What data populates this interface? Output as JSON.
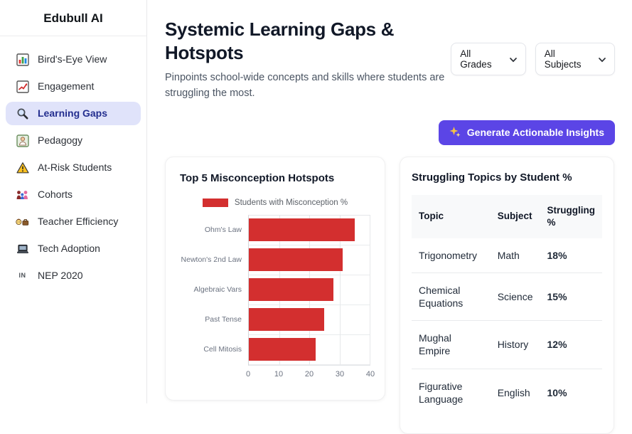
{
  "colors": {
    "accent_purple": "#5b45e6",
    "bar_red": "#d32f2f",
    "percent_red": "#dc2626",
    "selected_item_bg": "#e0e3fa",
    "selected_item_text": "#232e8f"
  },
  "sidebar": {
    "brand": "Edubull AI",
    "items": [
      {
        "label": "Bird's-Eye View",
        "icon": "bar-chart-icon",
        "selected": false
      },
      {
        "label": "Engagement",
        "icon": "chart-increasing-icon",
        "selected": false
      },
      {
        "label": "Learning Gaps",
        "icon": "magnifier-icon",
        "selected": true
      },
      {
        "label": "Pedagogy",
        "icon": "teacher-icon",
        "selected": false
      },
      {
        "label": "At-Risk Students",
        "icon": "warning-icon",
        "selected": false
      },
      {
        "label": "Cohorts",
        "icon": "family-icon",
        "selected": false
      },
      {
        "label": "Teacher Efficiency",
        "icon": "office-worker-icon",
        "selected": false
      },
      {
        "label": "Tech Adoption",
        "icon": "laptop-icon",
        "selected": false
      },
      {
        "label": "NEP 2020",
        "icon": "india-flag-icon",
        "icon_text": "IN",
        "selected": false
      }
    ]
  },
  "header": {
    "title": "Systemic Learning Gaps & Hotspots",
    "subtitle": "Pinpoints school-wide concepts and skills where students are struggling the most.",
    "grade_filter": "All Grades",
    "subject_filter": "All Subjects",
    "action_button": "Generate Actionable Insights"
  },
  "chart_card": {
    "title": "Top 5 Misconception Hotspots",
    "legend_label": "Students with Misconception %"
  },
  "chart_data": {
    "type": "bar",
    "orientation": "horizontal",
    "title": "Top 5 Misconception Hotspots",
    "series_label": "Students with Misconception %",
    "categories": [
      "Ohm's Law",
      "Newton's 2nd Law",
      "Algebraic Vars",
      "Past Tense",
      "Cell Mitosis"
    ],
    "values": [
      35,
      31,
      28,
      25,
      22
    ],
    "xlim": [
      0,
      40
    ],
    "ticks": [
      0,
      10,
      20,
      30,
      40
    ],
    "bar_color": "#d32f2f",
    "grid": true,
    "legend_position": "top"
  },
  "table_card": {
    "title": "Struggling Topics by Student %",
    "columns": [
      "Topic",
      "Subject",
      "Struggling %"
    ],
    "rows": [
      {
        "topic": "Trigonometry",
        "subject": "Math",
        "pct": "18%"
      },
      {
        "topic": "Chemical Equations",
        "subject": "Science",
        "pct": "15%"
      },
      {
        "topic": "Mughal Empire",
        "subject": "History",
        "pct": "12%"
      },
      {
        "topic": "Figurative Language",
        "subject": "English",
        "pct": "10%"
      }
    ]
  }
}
